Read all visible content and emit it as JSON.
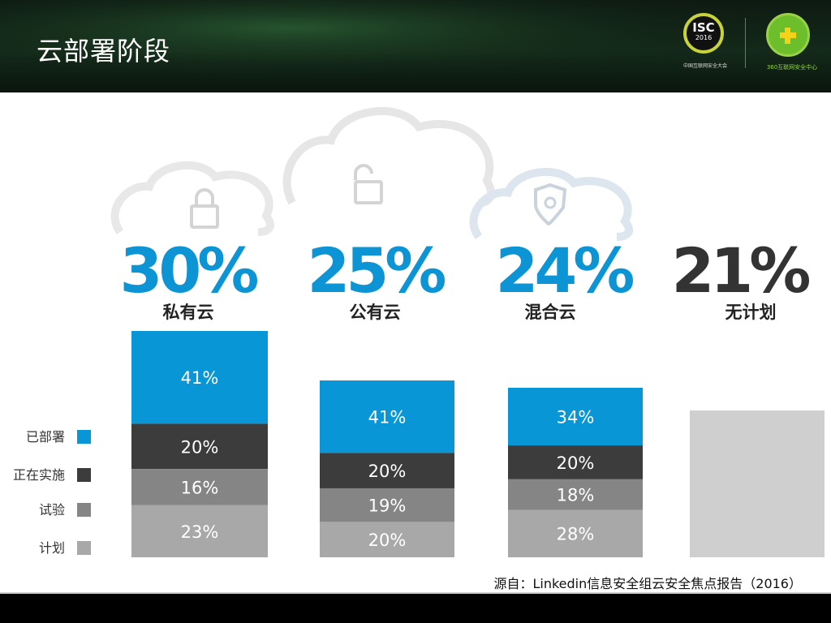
{
  "header": {
    "title": "云部署阶段"
  },
  "logos": {
    "isc_badge_text": "ISC",
    "isc_badge_year": "2016",
    "isc_caption": "中国互联网安全大会",
    "center_caption": "360互联网安全中心"
  },
  "source_note": "源自：Linkedin信息安全组云安全焦点报告（2016）",
  "chart_data": {
    "type": "bar",
    "stacked": true,
    "categories": [
      "私有云",
      "公有云",
      "混合云",
      "无计划"
    ],
    "headline_percent_labels": [
      "30%",
      "25%",
      "24%",
      "21%"
    ],
    "headline_values": [
      30,
      25,
      24,
      21
    ],
    "headline_colors": [
      "#0d94d4",
      "#0d94d4",
      "#0d94d4",
      "#333333"
    ],
    "category_icons": [
      "lock-icon",
      "unlocked-icon",
      "shield-icon",
      ""
    ],
    "series": [
      {
        "name": "已部署",
        "color": "#0896d6",
        "values": [
          41,
          41,
          34,
          null
        ]
      },
      {
        "name": "正在实施",
        "color": "#3c3c3c",
        "values": [
          20,
          20,
          20,
          null
        ]
      },
      {
        "name": "试验",
        "color": "#858585",
        "values": [
          16,
          19,
          18,
          null
        ]
      },
      {
        "name": "计划",
        "color": "#a8a8a8",
        "values": [
          23,
          20,
          28,
          null
        ]
      }
    ],
    "no_plan_color": "#cfcfcf",
    "legend_position": "left"
  }
}
